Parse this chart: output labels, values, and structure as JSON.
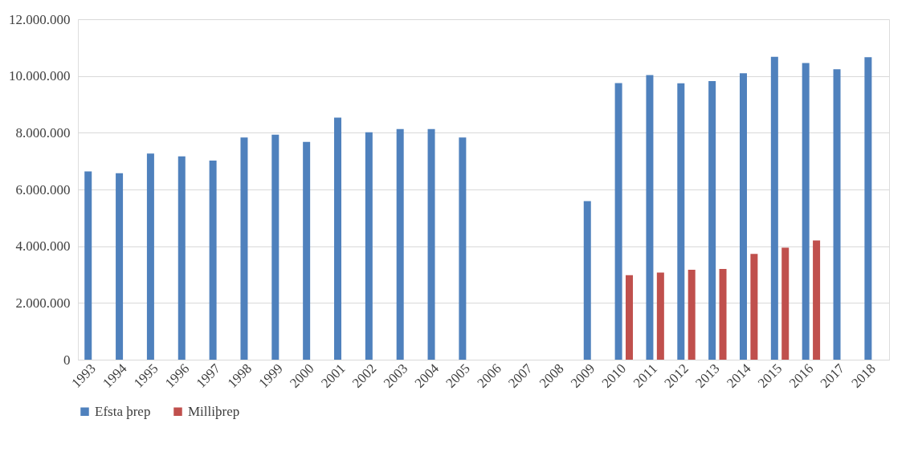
{
  "chart_data": {
    "type": "bar",
    "categories": [
      "1993",
      "1994",
      "1995",
      "1996",
      "1997",
      "1998",
      "1999",
      "2000",
      "2001",
      "2002",
      "2003",
      "2004",
      "2005",
      "2006",
      "2007",
      "2008",
      "2009",
      "2010",
      "2011",
      "2012",
      "2013",
      "2014",
      "2015",
      "2016",
      "2017",
      "2018"
    ],
    "series": [
      {
        "name": "Efsta þrep",
        "color": "#4f81bd",
        "values": [
          6640000,
          6570000,
          7270000,
          7170000,
          7020000,
          7830000,
          7930000,
          7680000,
          8530000,
          8020000,
          8130000,
          8130000,
          7830000,
          null,
          null,
          null,
          5590000,
          9750000,
          10030000,
          9740000,
          9820000,
          10100000,
          10680000,
          10460000,
          10240000,
          10660000
        ]
      },
      {
        "name": "Milliþrep",
        "color": "#c0504d",
        "values": [
          null,
          null,
          null,
          null,
          null,
          null,
          null,
          null,
          null,
          null,
          null,
          null,
          null,
          null,
          null,
          null,
          null,
          2980000,
          3070000,
          3170000,
          3200000,
          3730000,
          3950000,
          4200000,
          null,
          null
        ]
      }
    ],
    "ylim": [
      0,
      12000000
    ],
    "yticks": [
      0,
      {
        "value": 2000000,
        "label": "2.000.000"
      },
      {
        "value": 4000000,
        "label": "4.000.000"
      },
      {
        "value": 6000000,
        "label": "6.000.000"
      },
      {
        "value": 8000000,
        "label": "8.000.000"
      },
      {
        "value": 10000000,
        "label": "10.000.000"
      },
      {
        "value": 12000000,
        "label": "12.000.000"
      }
    ],
    "grid": "y",
    "legend": "bottom"
  }
}
